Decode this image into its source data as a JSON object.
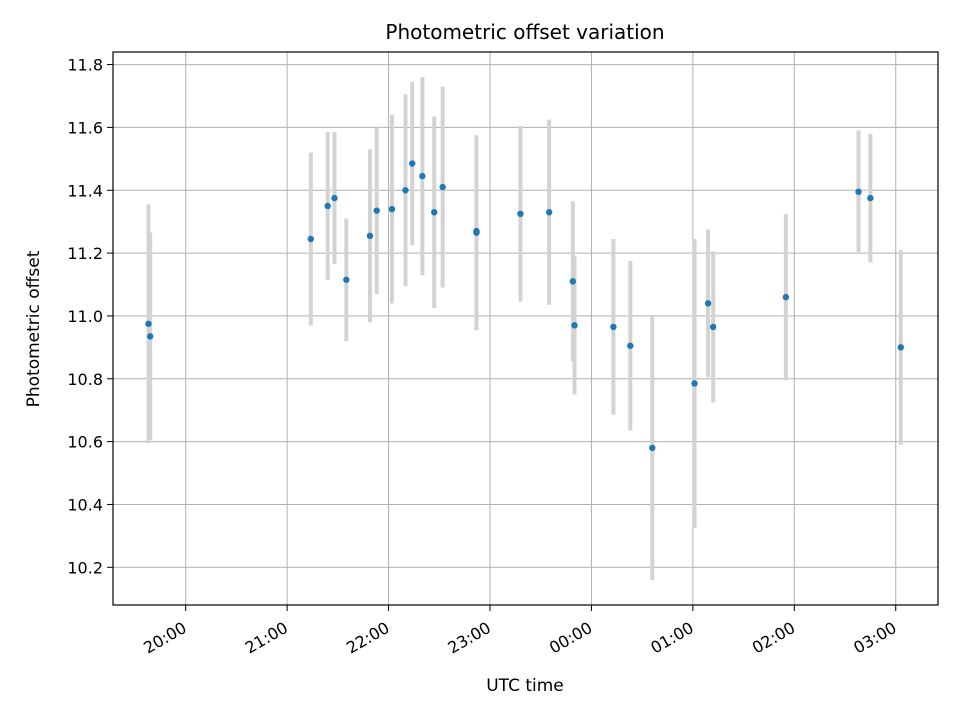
{
  "chart_data": {
    "type": "scatter",
    "title": "Photometric offset variation",
    "xlabel": "UTC time",
    "ylabel": "Photometric offset",
    "x_ticks": [
      "20:00",
      "21:00",
      "22:00",
      "23:00",
      "00:00",
      "01:00",
      "02:00",
      "03:00"
    ],
    "y_ticks": [
      "10.2",
      "10.4",
      "10.6",
      "10.8",
      "11.0",
      "11.2",
      "11.4",
      "11.6",
      "11.8"
    ],
    "x_range": [
      "19:17",
      "03:25"
    ],
    "ylim": [
      10.08,
      11.84
    ],
    "grid": true,
    "marker_color": "#1f77b4",
    "errorbar_color": "#d3d3d3",
    "points": [
      {
        "t": "19:38",
        "y": 10.975,
        "err": 0.38
      },
      {
        "t": "19:39",
        "y": 10.935,
        "err": 0.33
      },
      {
        "t": "21:14",
        "y": 11.245,
        "err": 0.275
      },
      {
        "t": "21:24",
        "y": 11.35,
        "err": 0.235
      },
      {
        "t": "21:28",
        "y": 11.375,
        "err": 0.21
      },
      {
        "t": "21:35",
        "y": 11.115,
        "err": 0.195
      },
      {
        "t": "21:49",
        "y": 11.255,
        "err": 0.275
      },
      {
        "t": "21:53",
        "y": 11.335,
        "err": 0.265
      },
      {
        "t": "22:02",
        "y": 11.34,
        "err": 0.3
      },
      {
        "t": "22:10",
        "y": 11.4,
        "err": 0.305
      },
      {
        "t": "22:14",
        "y": 11.485,
        "err": 0.26
      },
      {
        "t": "22:20",
        "y": 11.445,
        "err": 0.315
      },
      {
        "t": "22:27",
        "y": 11.33,
        "err": 0.305
      },
      {
        "t": "22:32",
        "y": 11.41,
        "err": 0.32
      },
      {
        "t": "22:52",
        "y": 11.265,
        "err": 0.31
      },
      {
        "t": "22:52",
        "y": 11.27,
        "err": 0.3
      },
      {
        "t": "23:18",
        "y": 11.325,
        "err": 0.28
      },
      {
        "t": "23:35",
        "y": 11.33,
        "err": 0.295
      },
      {
        "t": "23:49",
        "y": 11.11,
        "err": 0.255
      },
      {
        "t": "23:50",
        "y": 10.97,
        "err": 0.22
      },
      {
        "t": "00:13",
        "y": 10.965,
        "err": 0.28
      },
      {
        "t": "00:23",
        "y": 10.905,
        "err": 0.27
      },
      {
        "t": "00:36",
        "y": 10.58,
        "err": 0.42
      },
      {
        "t": "01:01",
        "y": 10.785,
        "err": 0.46
      },
      {
        "t": "01:09",
        "y": 11.04,
        "err": 0.235
      },
      {
        "t": "01:12",
        "y": 10.965,
        "err": 0.24
      },
      {
        "t": "01:55",
        "y": 11.06,
        "err": 0.265
      },
      {
        "t": "02:38",
        "y": 11.395,
        "err": 0.195
      },
      {
        "t": "02:45",
        "y": 11.375,
        "err": 0.205
      },
      {
        "t": "03:03",
        "y": 10.9,
        "err": 0.31
      }
    ]
  }
}
